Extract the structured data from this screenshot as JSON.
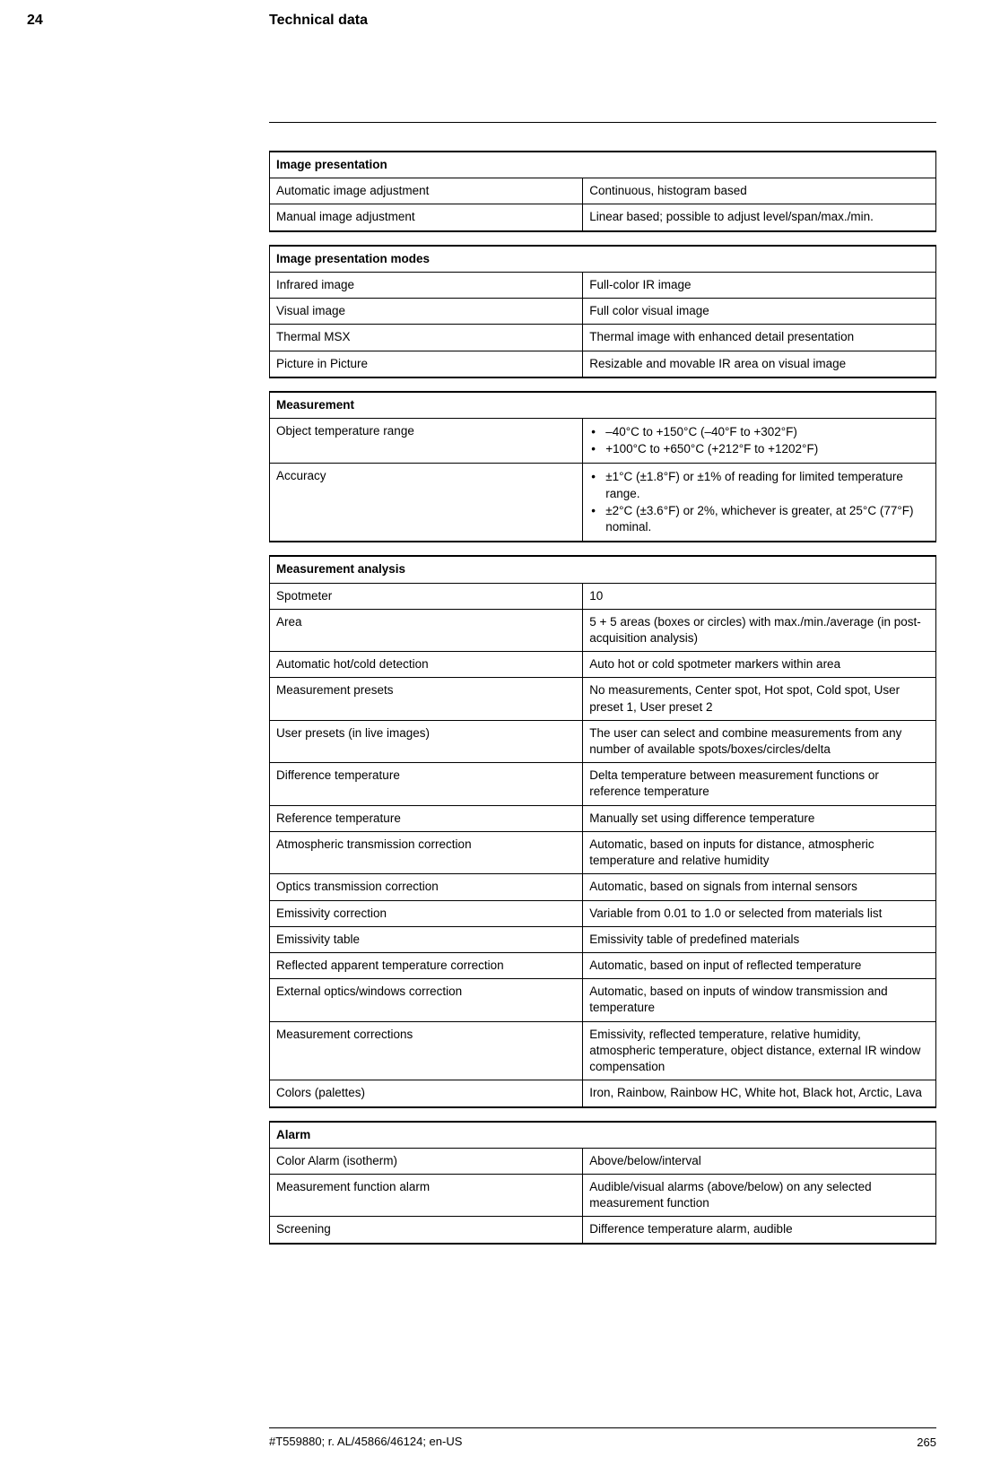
{
  "page": {
    "chapter_number": "24",
    "chapter_title": "Technical data",
    "footer_id": "#T559880; r. AL/45866/46124; en-US",
    "page_number": "265"
  },
  "tables": [
    {
      "header": "Image presentation",
      "rows": [
        {
          "l": "Automatic image adjustment",
          "r": "Continuous, histogram based"
        },
        {
          "l": "Manual image adjustment",
          "r": "Linear based; possible to adjust level/span/max./min."
        }
      ]
    },
    {
      "header": "Image presentation modes",
      "rows": [
        {
          "l": "Infrared image",
          "r": "Full-color IR image"
        },
        {
          "l": "Visual image",
          "r": "Full color visual image"
        },
        {
          "l": "Thermal MSX",
          "r": "Thermal image with enhanced detail presentation"
        },
        {
          "l": "Picture in Picture",
          "r": "Resizable and movable IR area on visual image"
        }
      ]
    },
    {
      "header": "Measurement",
      "rows": [
        {
          "l": "Object temperature range",
          "r_list": [
            "–40°C to +150°C (–40°F to +302°F)",
            "+100°C to +650°C (+212°F to +1202°F)"
          ]
        },
        {
          "l": "Accuracy",
          "r_list": [
            "±1°C (±1.8°F) or ±1% of reading for limited temperature range.",
            "±2°C (±3.6°F) or 2%, whichever is greater, at 25°C (77°F) nominal."
          ]
        }
      ]
    },
    {
      "header": "Measurement analysis",
      "rows": [
        {
          "l": "Spotmeter",
          "r": "10"
        },
        {
          "l": "Area",
          "r": "5 + 5 areas (boxes or circles) with max./min./average (in post-acquisition analysis)"
        },
        {
          "l": "Automatic hot/cold detection",
          "r": "Auto hot or cold spotmeter markers within area"
        },
        {
          "l": "Measurement presets",
          "r": "No measurements, Center spot, Hot spot, Cold spot, User preset 1, User preset 2"
        },
        {
          "l": "User presets (in live images)",
          "r": "The user can select and combine measurements from any number of available spots/boxes/circles/delta"
        },
        {
          "l": "Difference temperature",
          "r": "Delta temperature between measurement functions or reference temperature"
        },
        {
          "l": "Reference temperature",
          "r": "Manually set using difference temperature"
        },
        {
          "l": "Atmospheric transmission correction",
          "r": "Automatic, based on inputs for distance, atmospheric temperature and relative humidity"
        },
        {
          "l": "Optics transmission correction",
          "r": "Automatic, based on signals from internal sensors"
        },
        {
          "l": "Emissivity correction",
          "r": "Variable from 0.01 to 1.0 or selected from materials list"
        },
        {
          "l": "Emissivity table",
          "r": "Emissivity table of predefined materials"
        },
        {
          "l": "Reflected apparent temperature correction",
          "r": "Automatic, based on input of reflected temperature"
        },
        {
          "l": "External optics/windows correction",
          "r": "Automatic, based on inputs of window transmission and temperature"
        },
        {
          "l": "Measurement corrections",
          "r": "Emissivity, reflected temperature, relative humidity, atmospheric temperature, object distance, external IR window compensation"
        },
        {
          "l": "Colors (palettes)",
          "r": "Iron, Rainbow, Rainbow HC, White hot, Black hot, Arctic, Lava"
        }
      ]
    },
    {
      "header": "Alarm",
      "rows": [
        {
          "l": "Color Alarm (isotherm)",
          "r": "Above/below/interval"
        },
        {
          "l": "Measurement function alarm",
          "r": "Audible/visual alarms (above/below) on any selected measurement function"
        },
        {
          "l": "Screening",
          "r": "Difference temperature alarm, audible"
        }
      ]
    }
  ]
}
